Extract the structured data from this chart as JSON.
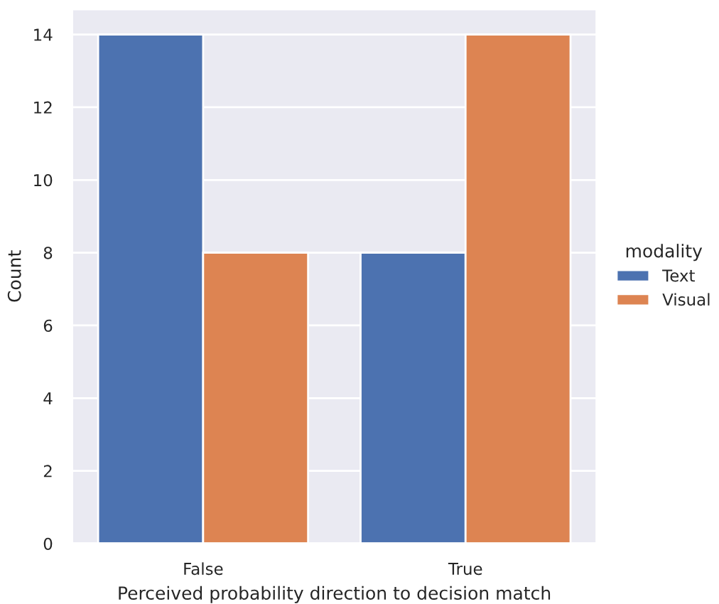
{
  "chart_data": {
    "type": "bar",
    "xlabel": "Perceived probability direction to decision match",
    "ylabel": "Count",
    "legend_title": "modality",
    "categories": [
      "False",
      "True"
    ],
    "series": [
      {
        "name": "Text",
        "color": "#4c72b0",
        "values": [
          14,
          8
        ]
      },
      {
        "name": "Visual",
        "color": "#dd8452",
        "values": [
          8,
          14
        ]
      }
    ],
    "ylim": [
      0,
      14.7
    ],
    "yticks": [
      0,
      2,
      4,
      6,
      8,
      10,
      12,
      14
    ],
    "grid": "y",
    "legend": "right"
  }
}
